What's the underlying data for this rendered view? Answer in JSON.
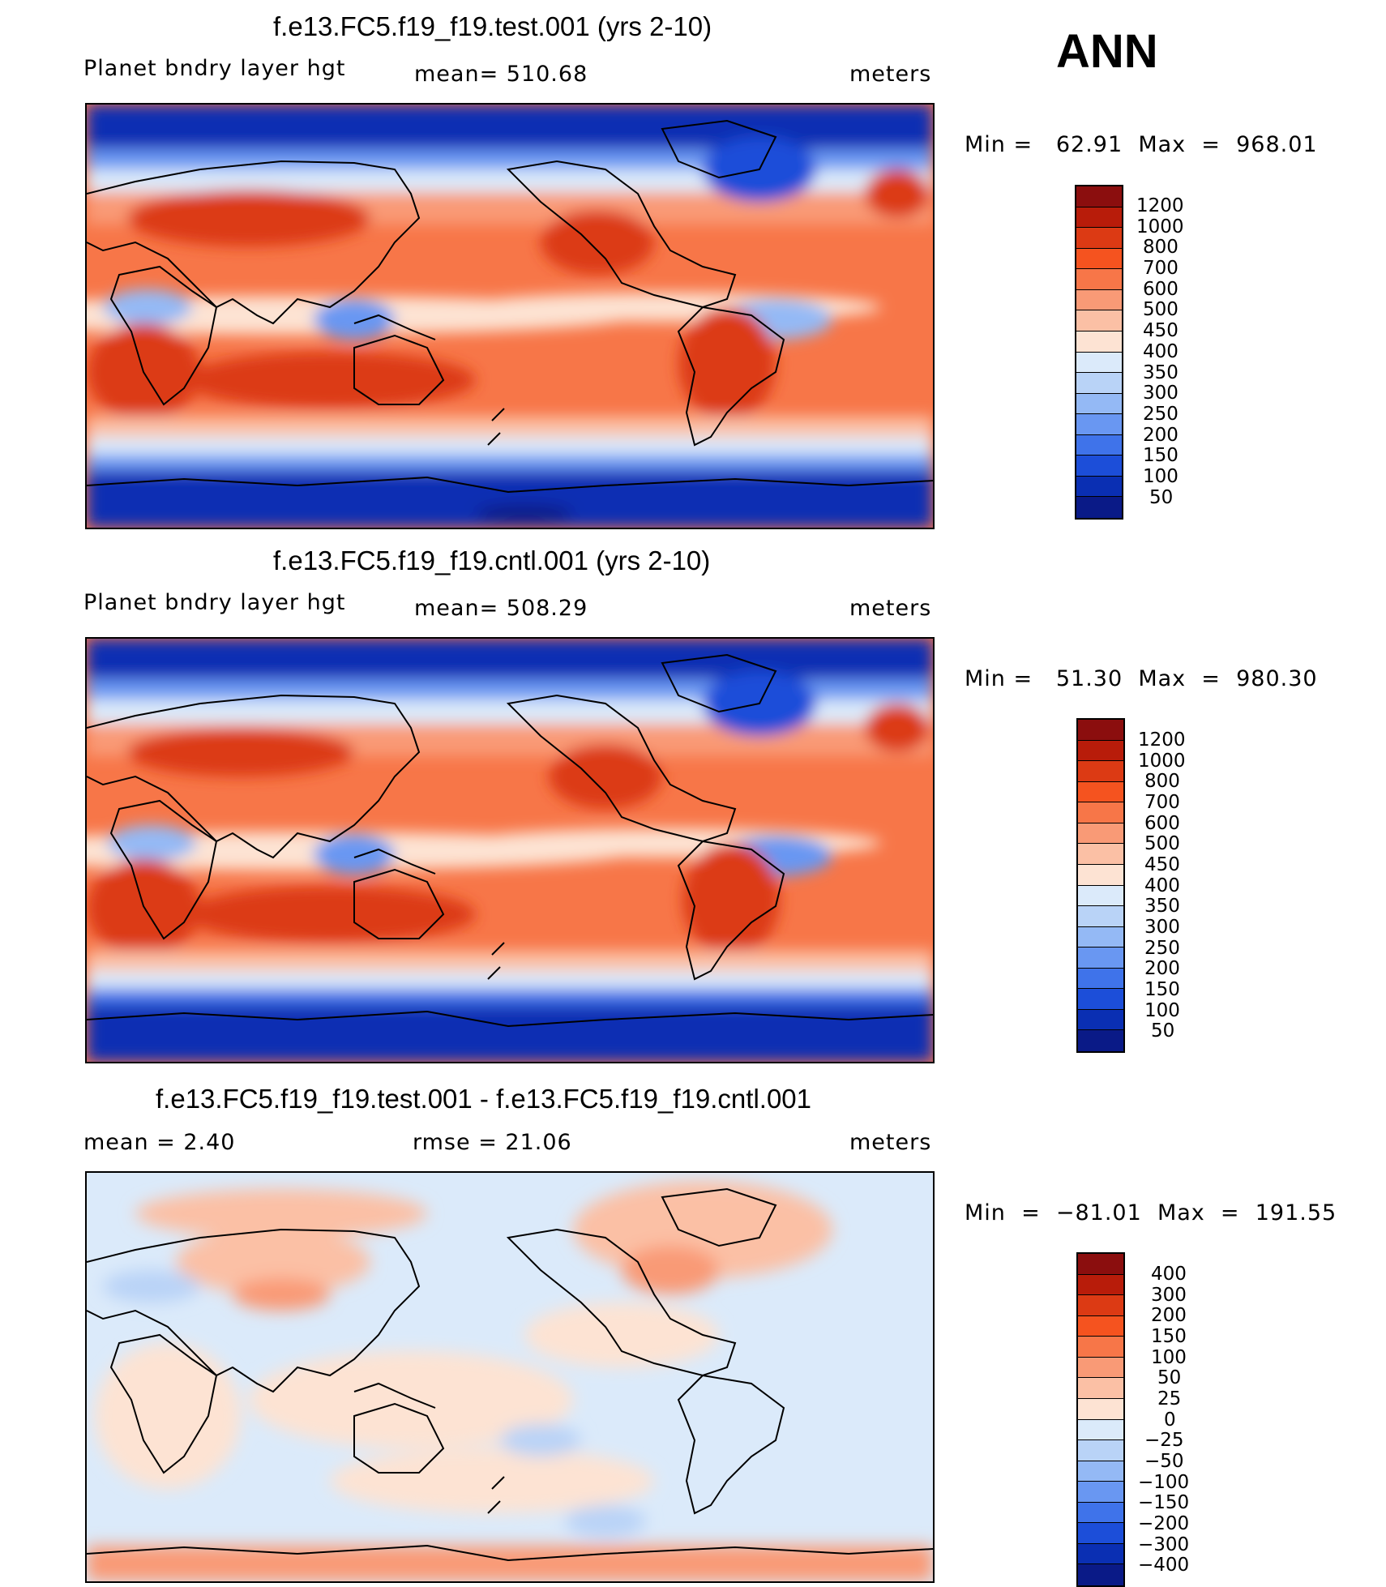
{
  "season": "ANN",
  "chart_data": [
    {
      "type": "heatmap",
      "title": "f.e13.FC5.f19_f19.test.001 (yrs 2-10)",
      "variable": "Planet bndry layer hgt",
      "stat_label": "mean= 510.68",
      "stat_label_2": "",
      "units": "meters",
      "minmax": "Min =   62.91  Max  =  968.01",
      "min": 62.91,
      "max": 968.01,
      "mean": 510.68,
      "colorbar_levels": [
        "1200",
        "1000",
        "800",
        "700",
        "600",
        "500",
        "450",
        "400",
        "350",
        "300",
        "250",
        "200",
        "150",
        "100",
        "50"
      ],
      "colorbar_colors": [
        "#8b0e0e",
        "#b81c0a",
        "#dc3a14",
        "#f5531f",
        "#f77648",
        "#f99a76",
        "#fbc0a5",
        "#fde3d3",
        "#dbeafa",
        "#b9d3f7",
        "#94b9f5",
        "#6997f2",
        "#3f73ea",
        "#1c4ed9",
        "#0a2fb3",
        "#0a1a87"
      ]
    },
    {
      "type": "heatmap",
      "title": "f.e13.FC5.f19_f19.cntl.001 (yrs 2-10)",
      "variable": "Planet bndry layer hgt",
      "stat_label": "mean= 508.29",
      "stat_label_2": "",
      "units": "meters",
      "minmax": "Min =   51.30  Max  =  980.30",
      "min": 51.3,
      "max": 980.3,
      "mean": 508.29,
      "colorbar_levels": [
        "1200",
        "1000",
        "800",
        "700",
        "600",
        "500",
        "450",
        "400",
        "350",
        "300",
        "250",
        "200",
        "150",
        "100",
        "50"
      ],
      "colorbar_colors": [
        "#8b0e0e",
        "#b81c0a",
        "#dc3a14",
        "#f5531f",
        "#f77648",
        "#f99a76",
        "#fbc0a5",
        "#fde3d3",
        "#dbeafa",
        "#b9d3f7",
        "#94b9f5",
        "#6997f2",
        "#3f73ea",
        "#1c4ed9",
        "#0a2fb3",
        "#0a1a87"
      ]
    },
    {
      "type": "heatmap",
      "title": "f.e13.FC5.f19_f19.test.001 - f.e13.FC5.f19_f19.cntl.001",
      "variable": "",
      "stat_label": "mean =     2.40",
      "stat_label_2": "rmse =    21.06",
      "units": "meters",
      "minmax": "Min  =  −81.01  Max  =  191.55",
      "min": -81.01,
      "max": 191.55,
      "mean": 2.4,
      "rmse": 21.06,
      "colorbar_levels": [
        "400",
        "300",
        "200",
        "150",
        "100",
        "50",
        "25",
        "0",
        "−25",
        "−50",
        "−100",
        "−150",
        "−200",
        "−300",
        "−400"
      ],
      "colorbar_colors": [
        "#8b0e0e",
        "#b81c0a",
        "#dc3a14",
        "#f5531f",
        "#f77648",
        "#f99a76",
        "#fbc0a5",
        "#fde3d3",
        "#dbeafa",
        "#b9d3f7",
        "#94b9f5",
        "#6997f2",
        "#3f73ea",
        "#1c4ed9",
        "#0a2fb3",
        "#0a1a87"
      ]
    }
  ]
}
